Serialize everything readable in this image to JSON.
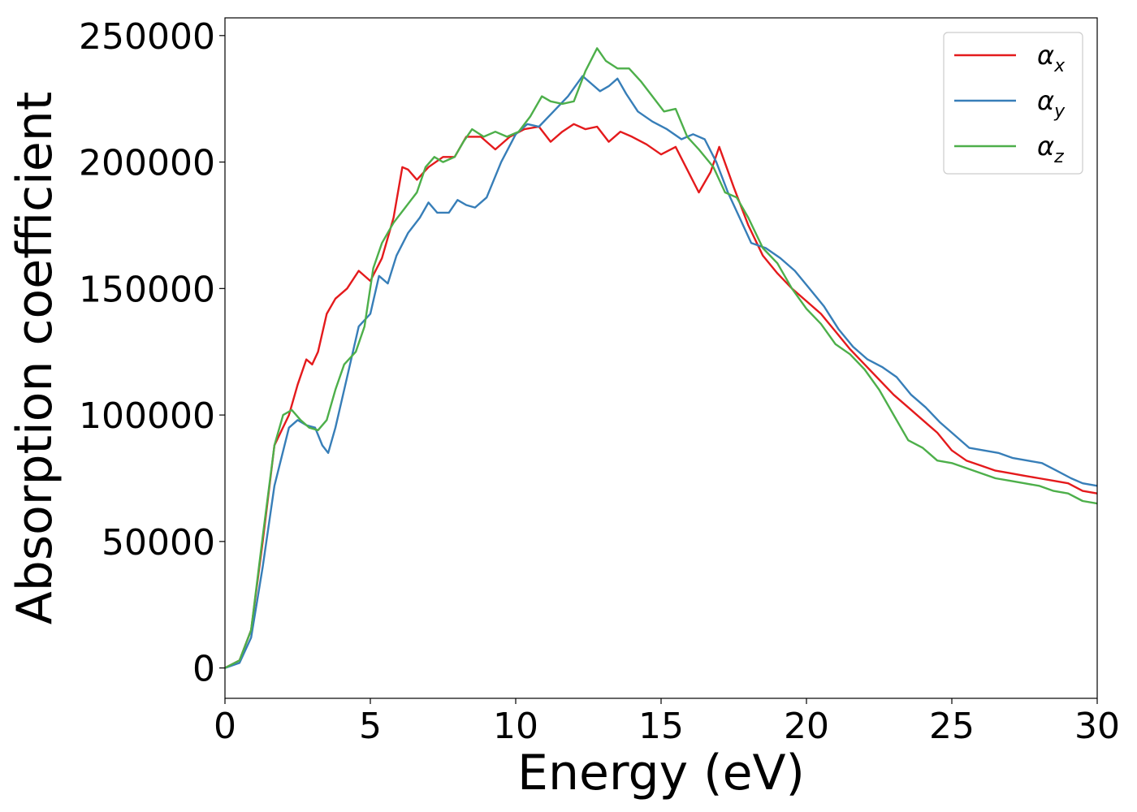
{
  "chart_data": {
    "type": "line",
    "title": "",
    "xlabel": "Energy (eV)",
    "ylabel": "Absorption coefficient",
    "xlim": [
      0,
      30
    ],
    "ylim": [
      -12000,
      257000
    ],
    "xticks": [
      0,
      5,
      10,
      15,
      20,
      25,
      30
    ],
    "xtick_labels": [
      "0",
      "5",
      "10",
      "15",
      "20",
      "25",
      "30"
    ],
    "yticks": [
      0,
      50000,
      100000,
      150000,
      200000,
      250000
    ],
    "ytick_labels": [
      "0",
      "50000",
      "100000",
      "150000",
      "200000",
      "250000"
    ],
    "grid": false,
    "legend": {
      "position": "top-right",
      "entries": [
        {
          "base": "α",
          "sub": "x"
        },
        {
          "base": "α",
          "sub": "y"
        },
        {
          "base": "α",
          "sub": "z"
        }
      ]
    },
    "series": [
      {
        "color": "#e41a1c",
        "x": [
          0,
          0.5,
          0.9,
          1.3,
          1.7,
          2.2,
          2.5,
          2.8,
          3.0,
          3.2,
          3.5,
          3.8,
          4.2,
          4.6,
          5.0,
          5.4,
          5.8,
          6.1,
          6.3,
          6.6,
          7.0,
          7.5,
          7.9,
          8.3,
          8.8,
          9.3,
          9.8,
          10.3,
          10.8,
          11.2,
          11.6,
          12.0,
          12.4,
          12.8,
          13.2,
          13.6,
          14.0,
          14.5,
          15.0,
          15.5,
          15.9,
          16.3,
          16.7,
          17.0,
          17.5,
          18.0,
          18.5,
          19.0,
          19.5,
          20.0,
          20.5,
          21.0,
          21.5,
          22.0,
          22.5,
          23.0,
          23.5,
          24.0,
          24.5,
          25.0,
          25.5,
          26.0,
          26.5,
          27.0,
          27.5,
          28.0,
          28.5,
          29.0,
          29.5,
          30.0
        ],
        "values": [
          0,
          3000,
          15000,
          50000,
          88000,
          100000,
          112000,
          122000,
          120000,
          125000,
          140000,
          146000,
          150000,
          157000,
          153000,
          162000,
          178000,
          198000,
          197000,
          193000,
          198000,
          202000,
          202000,
          210000,
          210000,
          205000,
          210000,
          213000,
          214000,
          208000,
          212000,
          215000,
          213000,
          214000,
          208000,
          212000,
          210000,
          207000,
          203000,
          206000,
          197000,
          188000,
          196000,
          206000,
          190000,
          175000,
          163000,
          156000,
          150000,
          145000,
          140000,
          133000,
          126000,
          120000,
          114000,
          108000,
          103000,
          98000,
          93000,
          86000,
          82000,
          80000,
          78000,
          77000,
          76000,
          75000,
          74000,
          73000,
          70000,
          69000
        ]
      },
      {
        "color": "#377eb8",
        "x": [
          0,
          0.5,
          0.9,
          1.3,
          1.7,
          2.2,
          2.5,
          2.8,
          3.1,
          3.35,
          3.55,
          3.8,
          4.2,
          4.6,
          5.0,
          5.3,
          5.6,
          5.9,
          6.3,
          6.7,
          7.0,
          7.3,
          7.7,
          8.0,
          8.3,
          8.6,
          9.0,
          9.5,
          10.0,
          10.4,
          10.8,
          11.3,
          11.8,
          12.3,
          12.6,
          12.9,
          13.2,
          13.5,
          13.8,
          14.2,
          14.7,
          15.2,
          15.7,
          16.1,
          16.5,
          16.9,
          17.3,
          17.7,
          18.1,
          18.6,
          19.1,
          19.6,
          20.1,
          20.6,
          21.1,
          21.6,
          22.1,
          22.6,
          23.1,
          23.6,
          24.1,
          24.6,
          25.1,
          25.6,
          26.1,
          26.6,
          27.1,
          27.6,
          28.1,
          28.6,
          29.1,
          29.5,
          30.0
        ],
        "values": [
          0,
          2000,
          12000,
          40000,
          72000,
          95000,
          98000,
          96000,
          95000,
          88000,
          85000,
          95000,
          115000,
          135000,
          140000,
          155000,
          152000,
          163000,
          172000,
          178000,
          184000,
          180000,
          180000,
          185000,
          183000,
          182000,
          186000,
          200000,
          211000,
          215000,
          214000,
          220000,
          226000,
          234000,
          231000,
          228000,
          230000,
          233000,
          227000,
          220000,
          216000,
          213000,
          209000,
          211000,
          209000,
          200000,
          188000,
          178000,
          168000,
          166000,
          162000,
          157000,
          150000,
          143000,
          134000,
          127000,
          122000,
          119000,
          115000,
          108000,
          103000,
          97000,
          92000,
          87000,
          86000,
          85000,
          83000,
          82000,
          81000,
          78000,
          75000,
          73000,
          72000
        ]
      },
      {
        "color": "#4daf4a",
        "x": [
          0,
          0.5,
          0.9,
          1.3,
          1.7,
          2.0,
          2.3,
          2.6,
          2.9,
          3.2,
          3.5,
          3.8,
          4.1,
          4.5,
          4.8,
          5.1,
          5.4,
          5.8,
          6.2,
          6.6,
          6.9,
          7.2,
          7.5,
          7.9,
          8.2,
          8.5,
          8.9,
          9.3,
          9.7,
          10.1,
          10.5,
          10.9,
          11.2,
          11.6,
          12.0,
          12.4,
          12.8,
          13.1,
          13.5,
          13.9,
          14.3,
          14.7,
          15.1,
          15.5,
          15.9,
          16.3,
          16.8,
          17.2,
          17.6,
          18.0,
          18.5,
          19.0,
          19.5,
          20.0,
          20.5,
          21.0,
          21.5,
          22.0,
          22.5,
          23.0,
          23.5,
          24.0,
          24.5,
          25.0,
          25.5,
          26.0,
          26.5,
          27.0,
          27.5,
          28.0,
          28.5,
          29.0,
          29.5,
          30.0
        ],
        "values": [
          0,
          3000,
          15000,
          52000,
          88000,
          100000,
          102000,
          98000,
          95000,
          94000,
          98000,
          110000,
          120000,
          125000,
          135000,
          158000,
          168000,
          176000,
          182000,
          188000,
          198000,
          202000,
          200000,
          202000,
          208000,
          213000,
          210000,
          212000,
          210000,
          212000,
          218000,
          226000,
          224000,
          223000,
          224000,
          236000,
          245000,
          240000,
          237000,
          237000,
          232000,
          226000,
          220000,
          221000,
          210000,
          205000,
          198000,
          188000,
          186000,
          178000,
          166000,
          160000,
          150000,
          142000,
          136000,
          128000,
          124000,
          118000,
          110000,
          100000,
          90000,
          87000,
          82000,
          81000,
          79000,
          77000,
          75000,
          74000,
          73000,
          72000,
          70000,
          69000,
          66000,
          65000
        ]
      }
    ]
  }
}
